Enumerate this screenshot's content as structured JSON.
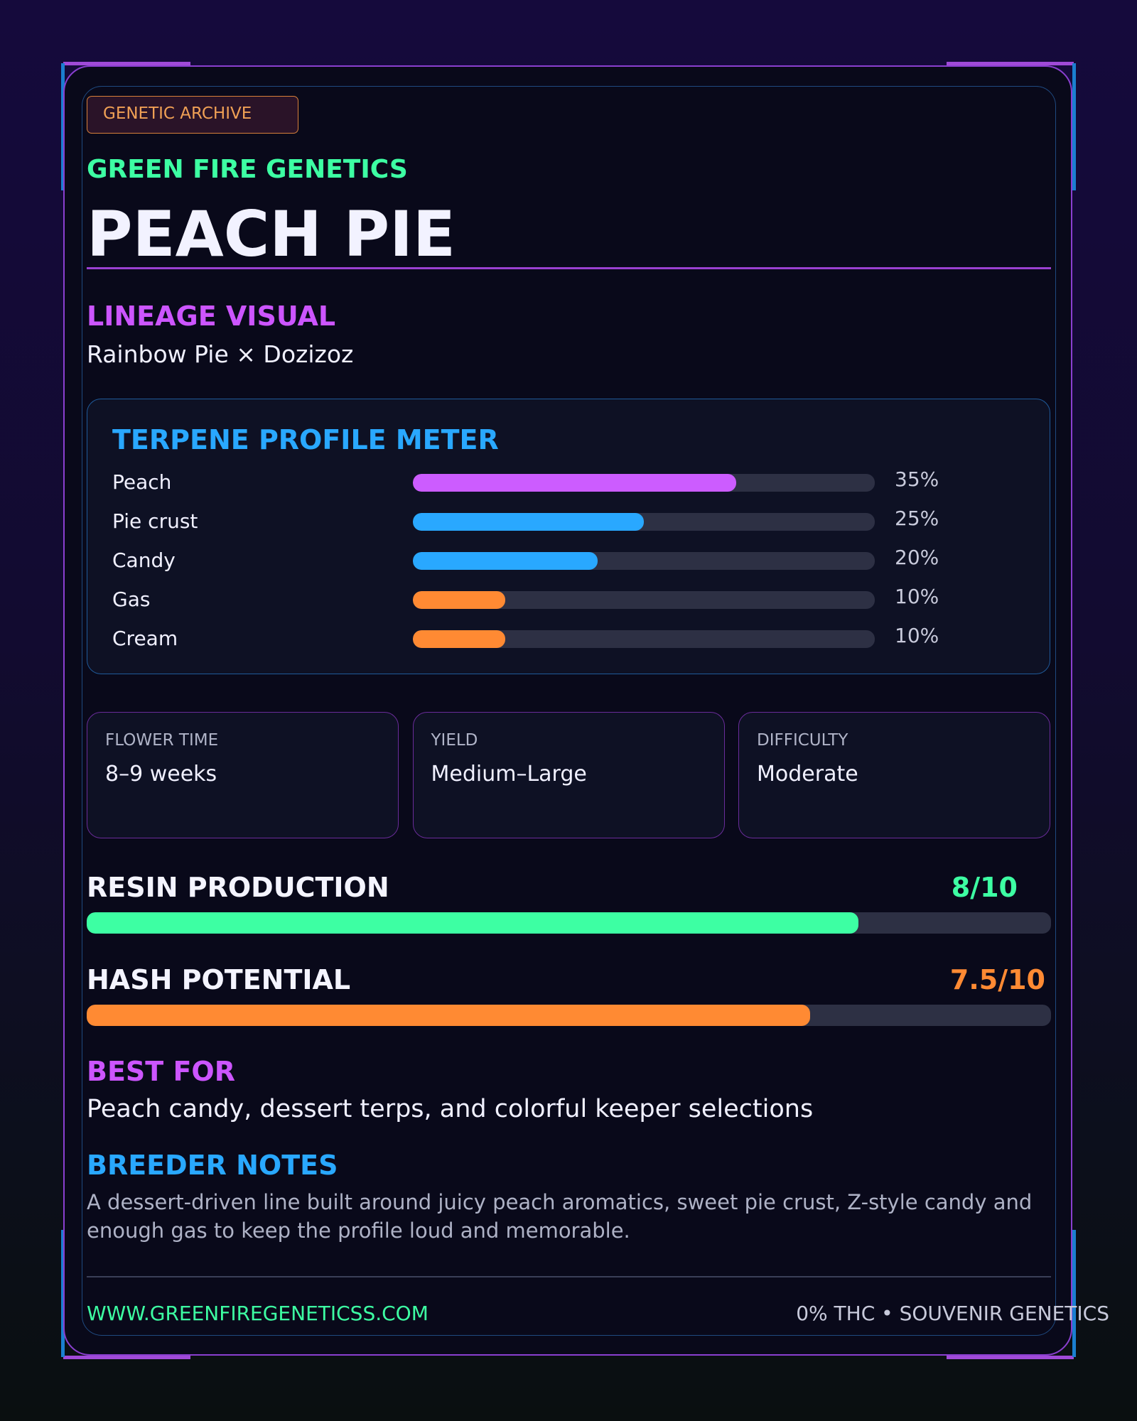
{
  "badge": "GENETIC ARCHIVE",
  "brand": "GREEN FIRE GENETICS",
  "title": "PEACH PIE",
  "lineage": {
    "heading": "LINEAGE VISUAL",
    "text": "Rainbow Pie × Dozizoz"
  },
  "terpenes": {
    "title": "TERPENE PROFILE METER",
    "xlim": [
      0,
      50
    ],
    "items": [
      {
        "name": "Peach",
        "value": 35,
        "value_label": "35%",
        "color": "#cc5cff"
      },
      {
        "name": "Pie crust",
        "value": 25,
        "value_label": "25%",
        "color": "#29a8ff"
      },
      {
        "name": "Candy",
        "value": 20,
        "value_label": "20%",
        "color": "#29a8ff"
      },
      {
        "name": "Gas",
        "value": 10,
        "value_label": "10%",
        "color": "#ff8a33"
      },
      {
        "name": "Cream",
        "value": 10,
        "value_label": "10%",
        "color": "#ff8a33"
      }
    ]
  },
  "stats": [
    {
      "label": "FLOWER TIME",
      "value": "8–9 weeks"
    },
    {
      "label": "YIELD",
      "value": "Medium–Large"
    },
    {
      "label": "DIFFICULTY",
      "value": "Moderate"
    }
  ],
  "ratings": [
    {
      "label": "RESIN PRODUCTION",
      "value": 8,
      "value_label": "8/10",
      "scale_max": 10,
      "color": "#3dffa3"
    },
    {
      "label": "HASH POTENTIAL",
      "value": 7.5,
      "value_label": "7.5/10",
      "scale_max": 10,
      "color": "#ff8a33"
    }
  ],
  "best_for": {
    "heading": "BEST FOR",
    "text": "Peach candy, dessert terps, and colorful keeper selections"
  },
  "notes": {
    "heading": "BREEDER NOTES",
    "text": "A dessert-driven line built around juicy peach aromatics, sweet pie crust, Z-style candy and enough gas to keep the profile loud and memorable."
  },
  "footer": {
    "url": "WWW.GREENFIREGENETICSS.COM",
    "note": "0% THC • SOUVENIR GENETICS"
  }
}
